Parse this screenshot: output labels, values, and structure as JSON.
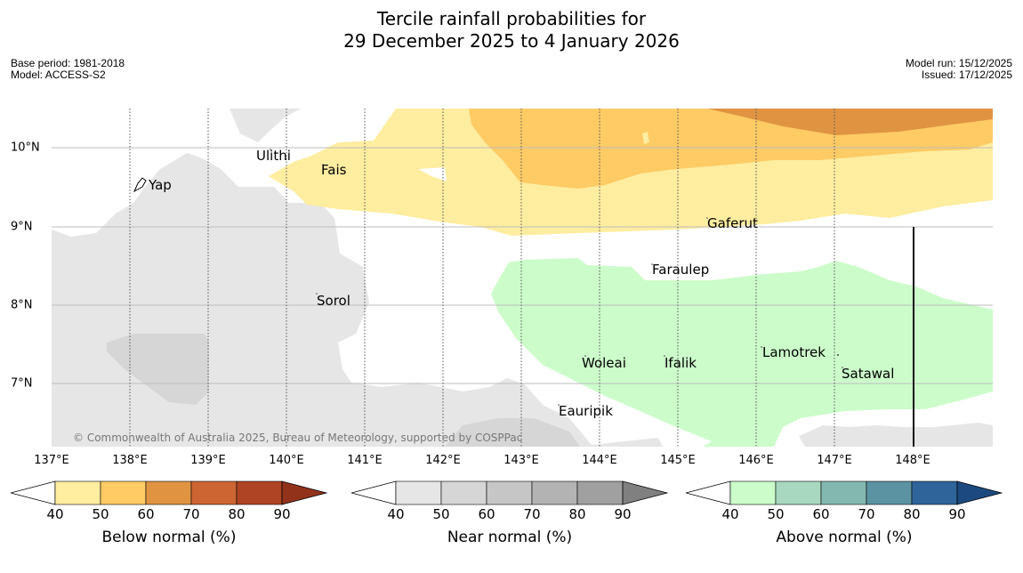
{
  "title": {
    "line1": "Tercile rainfall probabilities for",
    "line2": "29 December 2025 to 4 January 2026"
  },
  "meta": {
    "base_period": "Base period: 1981-2018",
    "model": "Model: ACCESS-S2",
    "model_run": "Model run: 15/12/2025",
    "issued": "Issued: 17/12/2025"
  },
  "map": {
    "lon_labels": [
      "137°E",
      "138°E",
      "139°E",
      "140°E",
      "141°E",
      "142°E",
      "143°E",
      "144°E",
      "145°E",
      "146°E",
      "147°E",
      "148°E"
    ],
    "lat_labels": [
      "10°N",
      "9°N",
      "8°N",
      "7°N"
    ],
    "places": [
      "Ulithi",
      "Fais",
      "Yap",
      "Gaferut",
      "Faraulep",
      "Sorol",
      "Woleai",
      "Ifalik",
      "Lamotrek",
      "Satawal",
      "Eauripik"
    ],
    "copyright": "© Commonwealth of Australia 2025, Bureau of Meteorology, supported by COSPPac"
  },
  "colorbars": [
    {
      "label": "Below normal (%)",
      "ticks": [
        "40",
        "50",
        "60",
        "70",
        "80",
        "90"
      ],
      "colors": [
        "#ffeda0",
        "#fecb65",
        "#e09442",
        "#cd6533",
        "#ae4423",
        "#93321b"
      ]
    },
    {
      "label": "Near normal (%)",
      "ticks": [
        "40",
        "50",
        "60",
        "70",
        "80",
        "90"
      ],
      "colors": [
        "#e6e6e6",
        "#d6d6d6",
        "#c6c6c6",
        "#b3b3b3",
        "#a0a0a0",
        "#808080"
      ]
    },
    {
      "label": "Above normal (%)",
      "ticks": [
        "40",
        "50",
        "60",
        "70",
        "80",
        "90"
      ],
      "colors": [
        "#ccfcca",
        "#a8d8c0",
        "#82b8b0",
        "#5b93a2",
        "#2e6499",
        "#1c4a80"
      ]
    }
  ]
}
